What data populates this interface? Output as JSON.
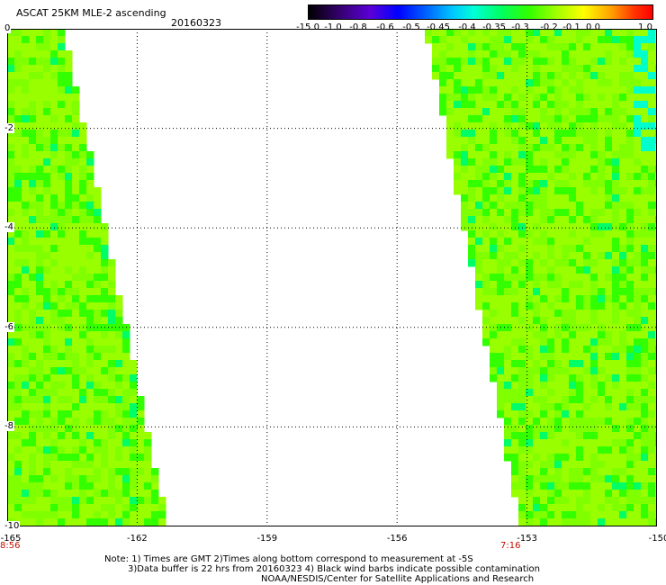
{
  "header": {
    "title": "ASCAT 25KM MLE-2 ascending",
    "date": "20160323"
  },
  "colorbar": {
    "labels": [
      "-15.0",
      "-1.0",
      "-0.8",
      "-0.6",
      "-0.5",
      "-0.45",
      "-0.4",
      "-0.35",
      "-0.3",
      "-0.2",
      "-0.1",
      "0.0",
      "1.0"
    ]
  },
  "map": {
    "lat_labels": [
      "0",
      "-2",
      "-4",
      "-6",
      "-8",
      "-10"
    ],
    "lon_labels": [
      "-165",
      "-162",
      "-159",
      "-156",
      "-153",
      "-150"
    ],
    "time_labels": {
      "left": "8:56",
      "right": "7:16"
    },
    "land_color": "#ffffff",
    "data_colors": [
      "#99ff00",
      "#7fff00",
      "#33ff00",
      "#00ff66",
      "#00ffcc"
    ]
  },
  "notes": {
    "line1": "Note: 1) Times are GMT 2)Times along bottom correspond to measurement at -5S",
    "line2": "3)Data buffer is 22 hrs from 20160323 4) Black wind barbs indicate possible contamination",
    "line3": "NOAA/NESDIS/Center for Satellite Applications and Research"
  }
}
